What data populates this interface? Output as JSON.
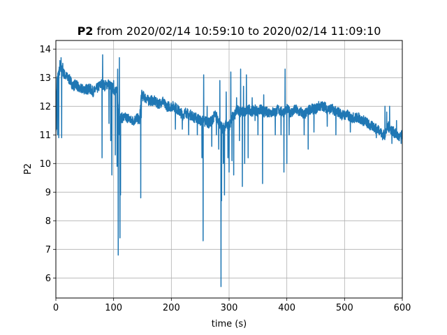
{
  "chart_data": {
    "type": "line",
    "title_bold": "P2",
    "title_rest": " from 2020/02/14 10:59:10 to 2020/02/14 11:09:10",
    "xlabel": "time (s)",
    "ylabel": "P2",
    "xlim": [
      0,
      600
    ],
    "ylim": [
      5.3,
      14.3
    ],
    "xticks": [
      0,
      100,
      200,
      300,
      400,
      500,
      600
    ],
    "yticks": [
      6,
      7,
      8,
      9,
      10,
      11,
      12,
      13,
      14
    ],
    "grid": true,
    "legend": "none",
    "series": [
      {
        "color": "#1f77b4",
        "baseline": [
          [
            0,
            11.3
          ],
          [
            2,
            12.9
          ],
          [
            5,
            13.2
          ],
          [
            10,
            13.3
          ],
          [
            15,
            13.1
          ],
          [
            20,
            13.0
          ],
          [
            25,
            12.9
          ],
          [
            30,
            12.7
          ],
          [
            35,
            12.8
          ],
          [
            40,
            12.6
          ],
          [
            45,
            12.6
          ],
          [
            50,
            12.6
          ],
          [
            55,
            12.6
          ],
          [
            60,
            12.6
          ],
          [
            65,
            12.5
          ],
          [
            70,
            12.6
          ],
          [
            75,
            12.7
          ],
          [
            80,
            12.8
          ],
          [
            85,
            12.7
          ],
          [
            90,
            12.8
          ],
          [
            95,
            12.7
          ],
          [
            100,
            12.6
          ],
          [
            105,
            12.5
          ],
          [
            108,
            12.0
          ],
          [
            110,
            11.6
          ],
          [
            115,
            11.6
          ],
          [
            120,
            11.6
          ],
          [
            125,
            11.6
          ],
          [
            130,
            11.5
          ],
          [
            135,
            11.5
          ],
          [
            140,
            11.6
          ],
          [
            145,
            11.5
          ],
          [
            148,
            12.4
          ],
          [
            155,
            12.3
          ],
          [
            160,
            12.2
          ],
          [
            165,
            12.2
          ],
          [
            170,
            12.2
          ],
          [
            175,
            12.1
          ],
          [
            180,
            12.1
          ],
          [
            185,
            12.2
          ],
          [
            190,
            12.0
          ],
          [
            195,
            12.0
          ],
          [
            200,
            12.0
          ],
          [
            205,
            12.0
          ],
          [
            210,
            11.9
          ],
          [
            215,
            11.8
          ],
          [
            220,
            11.7
          ],
          [
            225,
            11.8
          ],
          [
            230,
            11.7
          ],
          [
            235,
            11.7
          ],
          [
            240,
            11.6
          ],
          [
            245,
            11.6
          ],
          [
            250,
            11.5
          ],
          [
            255,
            11.5
          ],
          [
            260,
            11.5
          ],
          [
            265,
            11.4
          ],
          [
            270,
            11.5
          ],
          [
            275,
            11.7
          ],
          [
            280,
            11.6
          ],
          [
            285,
            11.3
          ],
          [
            290,
            11.2
          ],
          [
            295,
            11.4
          ],
          [
            300,
            11.3
          ],
          [
            305,
            11.6
          ],
          [
            310,
            11.7
          ],
          [
            315,
            11.9
          ],
          [
            320,
            11.8
          ],
          [
            325,
            11.8
          ],
          [
            330,
            11.8
          ],
          [
            335,
            11.9
          ],
          [
            340,
            11.8
          ],
          [
            345,
            11.9
          ],
          [
            350,
            11.8
          ],
          [
            355,
            11.9
          ],
          [
            360,
            11.8
          ],
          [
            365,
            11.8
          ],
          [
            370,
            11.8
          ],
          [
            375,
            11.8
          ],
          [
            380,
            11.8
          ],
          [
            385,
            11.9
          ],
          [
            390,
            11.8
          ],
          [
            395,
            11.8
          ],
          [
            400,
            11.9
          ],
          [
            405,
            11.8
          ],
          [
            410,
            11.8
          ],
          [
            415,
            11.9
          ],
          [
            420,
            11.8
          ],
          [
            425,
            11.8
          ],
          [
            430,
            11.7
          ],
          [
            435,
            11.8
          ],
          [
            440,
            11.9
          ],
          [
            445,
            11.9
          ],
          [
            450,
            11.9
          ],
          [
            455,
            12.0
          ],
          [
            460,
            12.0
          ],
          [
            465,
            12.0
          ],
          [
            470,
            11.9
          ],
          [
            475,
            11.9
          ],
          [
            480,
            11.9
          ],
          [
            485,
            11.8
          ],
          [
            490,
            11.8
          ],
          [
            495,
            11.7
          ],
          [
            500,
            11.7
          ],
          [
            505,
            11.7
          ],
          [
            510,
            11.6
          ],
          [
            515,
            11.6
          ],
          [
            520,
            11.6
          ],
          [
            525,
            11.6
          ],
          [
            530,
            11.5
          ],
          [
            535,
            11.5
          ],
          [
            540,
            11.4
          ],
          [
            545,
            11.3
          ],
          [
            550,
            11.3
          ],
          [
            555,
            11.2
          ],
          [
            560,
            11.2
          ],
          [
            565,
            11.0
          ],
          [
            570,
            11.0
          ],
          [
            575,
            11.3
          ],
          [
            580,
            11.2
          ],
          [
            585,
            11.1
          ],
          [
            590,
            11.0
          ],
          [
            595,
            10.9
          ],
          [
            600,
            11.0
          ]
        ],
        "spikes": [
          [
            1,
            11.2
          ],
          [
            3,
            11.0
          ],
          [
            5,
            10.9
          ],
          [
            7,
            13.6
          ],
          [
            9,
            13.7
          ],
          [
            10,
            10.9
          ],
          [
            12,
            13.5
          ],
          [
            80,
            10.2
          ],
          [
            81,
            13.8
          ],
          [
            86,
            12.9
          ],
          [
            92,
            11.4
          ],
          [
            95,
            10.8
          ],
          [
            97,
            9.6
          ],
          [
            100,
            12.9
          ],
          [
            103,
            10.3
          ],
          [
            106,
            9.9
          ],
          [
            107,
            13.3
          ],
          [
            108,
            6.8
          ],
          [
            109,
            11.0
          ],
          [
            110,
            13.7
          ],
          [
            111,
            7.4
          ],
          [
            112,
            8.9
          ],
          [
            147,
            8.8
          ],
          [
            148,
            11.6
          ],
          [
            207,
            11.2
          ],
          [
            219,
            11.2
          ],
          [
            230,
            11.0
          ],
          [
            245,
            11.0
          ],
          [
            253,
            10.2
          ],
          [
            255,
            7.3
          ],
          [
            256,
            13.1
          ],
          [
            258,
            11.3
          ],
          [
            262,
            12.0
          ],
          [
            270,
            10.6
          ],
          [
            278,
            11.0
          ],
          [
            282,
            10.5
          ],
          [
            284,
            12.9
          ],
          [
            286,
            5.7
          ],
          [
            287,
            8.7
          ],
          [
            290,
            10.0
          ],
          [
            292,
            8.9
          ],
          [
            295,
            12.5
          ],
          [
            298,
            10.2
          ],
          [
            300,
            9.7
          ],
          [
            303,
            13.2
          ],
          [
            305,
            10.1
          ],
          [
            308,
            9.6
          ],
          [
            313,
            12.3
          ],
          [
            318,
            10.8
          ],
          [
            320,
            13.3
          ],
          [
            323,
            9.2
          ],
          [
            325,
            12.7
          ],
          [
            327,
            10.0
          ],
          [
            330,
            13.1
          ],
          [
            333,
            10.2
          ],
          [
            340,
            12.3
          ],
          [
            345,
            11.5
          ],
          [
            350,
            11.0
          ],
          [
            358,
            9.3
          ],
          [
            360,
            12.4
          ],
          [
            380,
            11.0
          ],
          [
            390,
            11.0
          ],
          [
            395,
            9.7
          ],
          [
            397,
            13.3
          ],
          [
            400,
            10.0
          ],
          [
            404,
            11.0
          ],
          [
            430,
            11.0
          ],
          [
            437,
            10.5
          ],
          [
            447,
            11.1
          ],
          [
            470,
            11.3
          ],
          [
            485,
            11.0
          ],
          [
            510,
            11.1
          ],
          [
            555,
            10.9
          ],
          [
            570,
            12.0
          ],
          [
            573,
            11.8
          ],
          [
            578,
            12.0
          ],
          [
            582,
            10.7
          ],
          [
            590,
            11.5
          ],
          [
            598,
            10.7
          ]
        ]
      }
    ]
  }
}
